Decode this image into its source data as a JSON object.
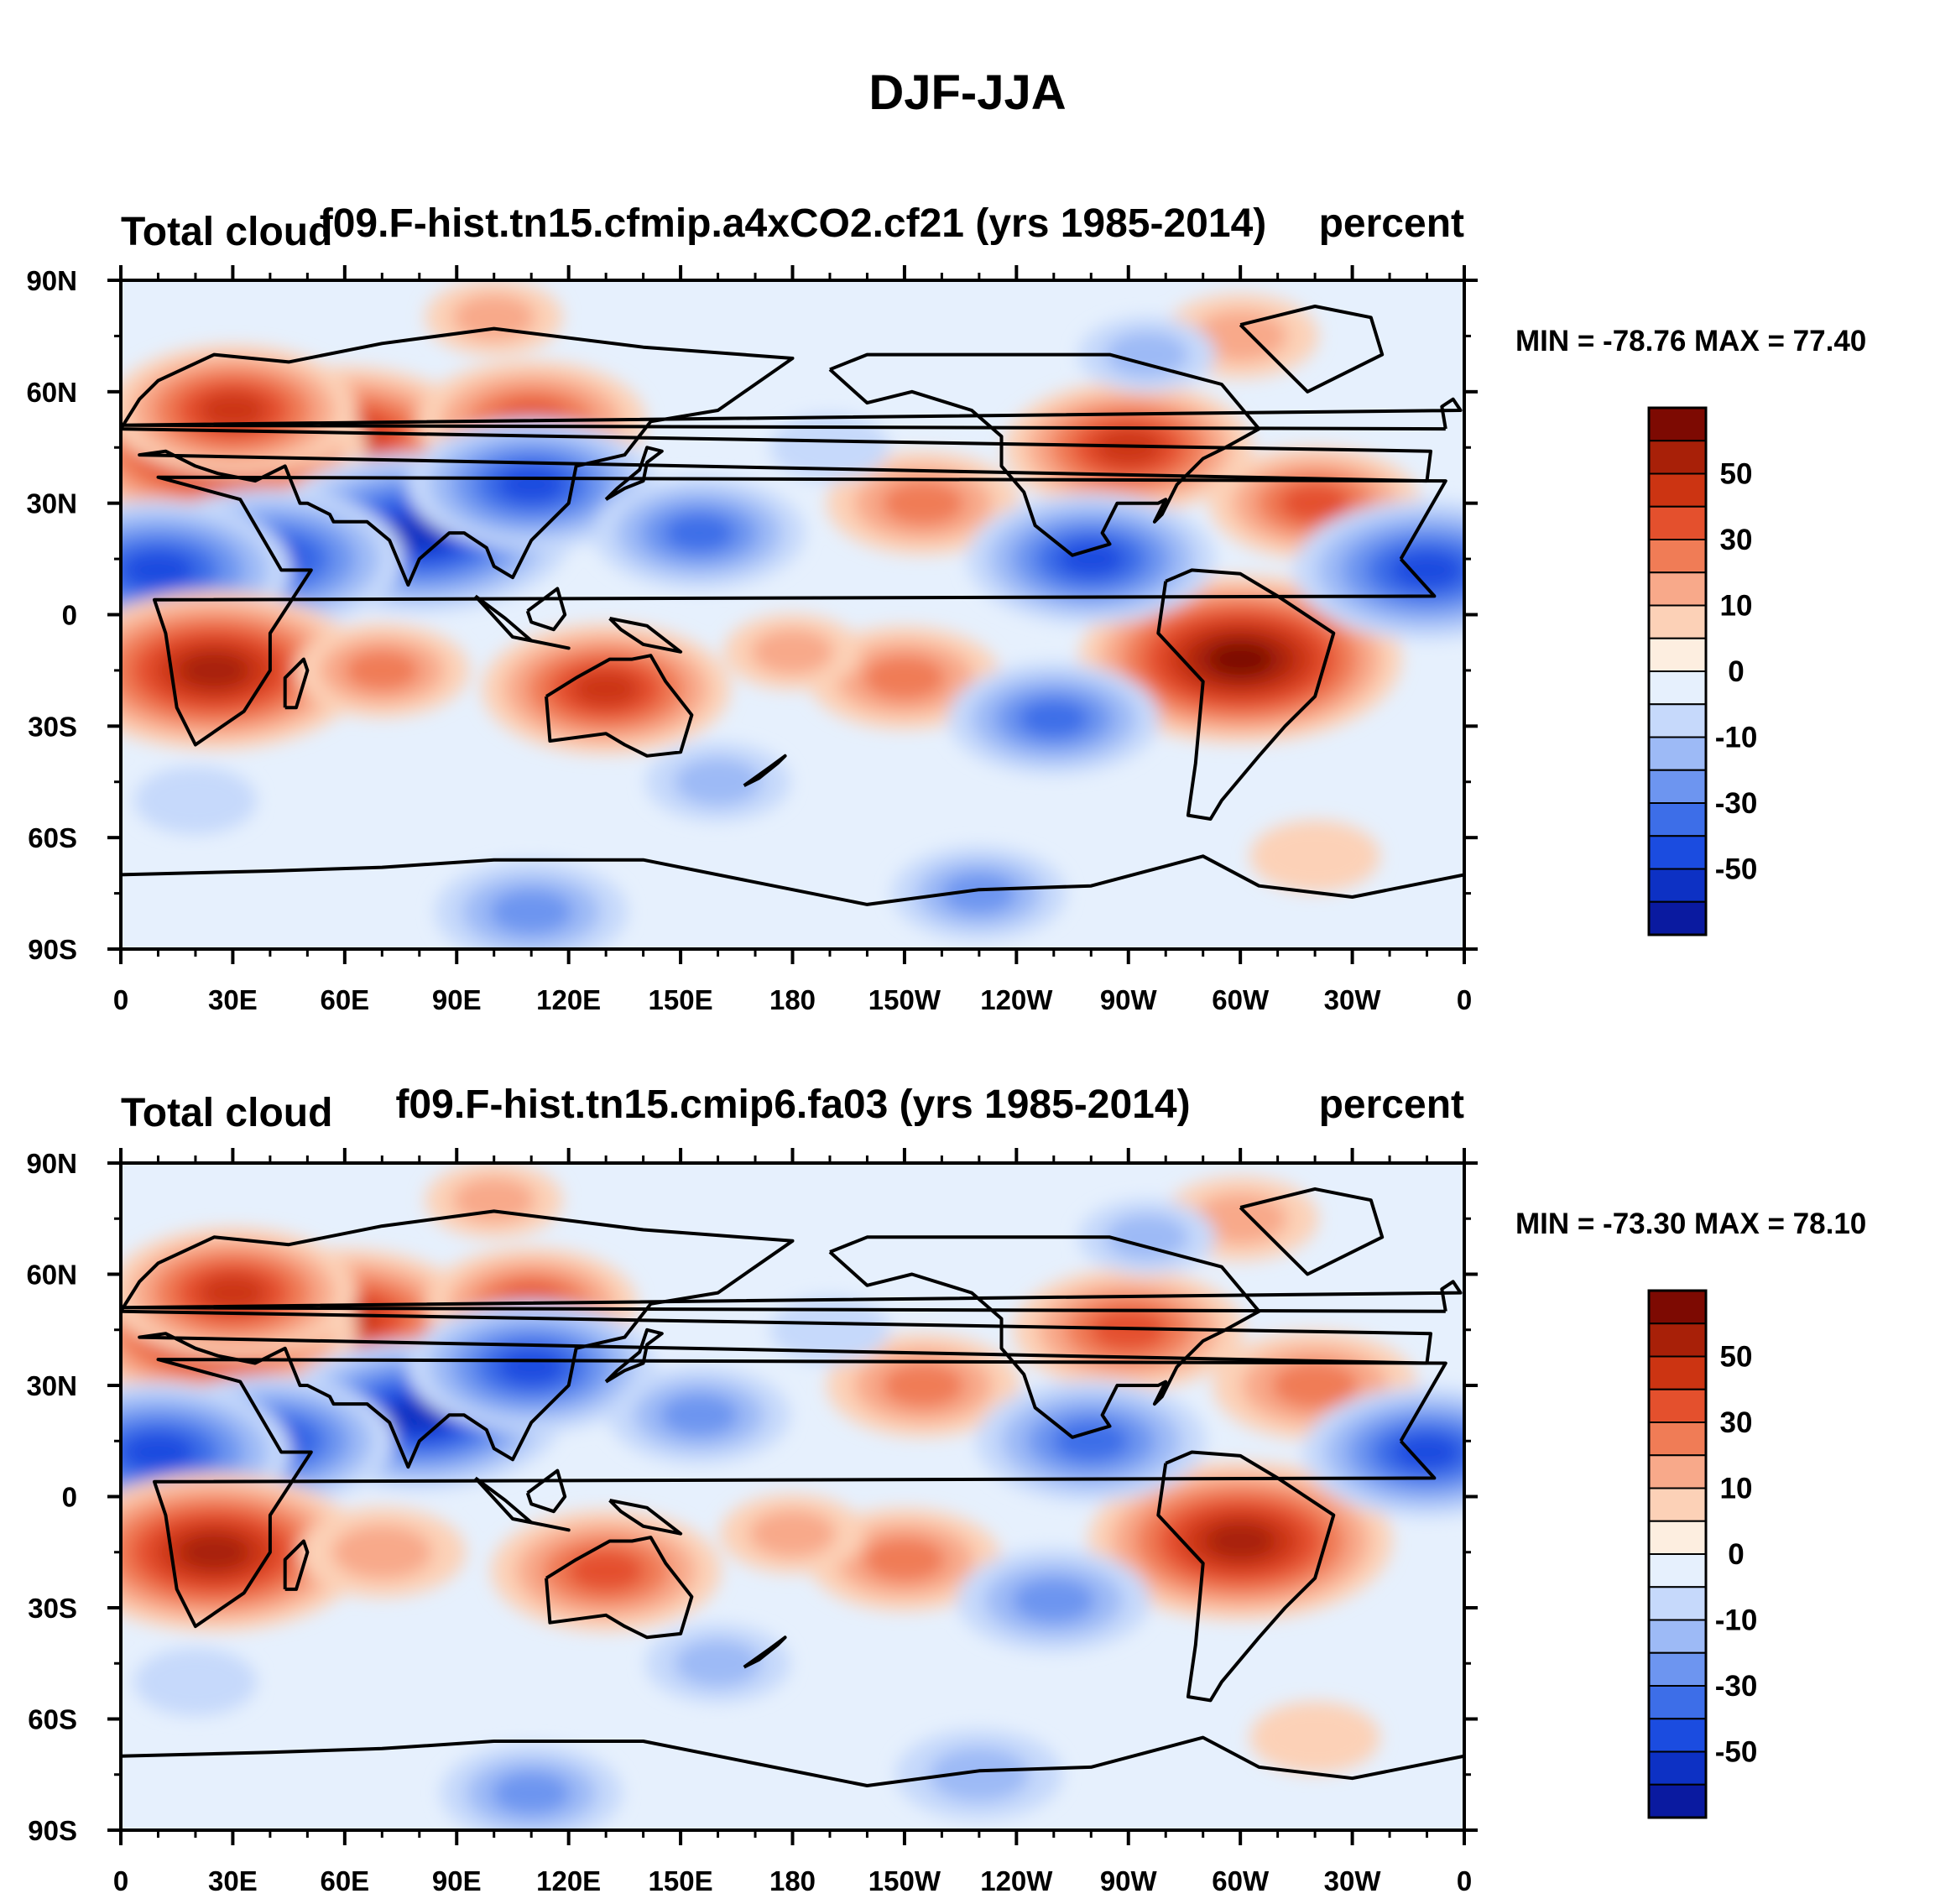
{
  "figure": {
    "title": "DJF-JJA"
  },
  "colorbar": {
    "colors": [
      "#08087f",
      "#0a1aa0",
      "#0d31c4",
      "#1b4ce0",
      "#3d6ee8",
      "#6d95f0",
      "#9dbaf6",
      "#c6d9fb",
      "#e6f0fd",
      "#fdeee0",
      "#fcd1b7",
      "#f8a98a",
      "#f07c56",
      "#e4502d",
      "#cc3412",
      "#a82008",
      "#7d0a02"
    ],
    "levels": [
      -70,
      -60,
      -50,
      -40,
      -30,
      -20,
      -10,
      -5,
      0,
      5,
      10,
      20,
      30,
      40,
      50,
      60,
      70
    ],
    "labels": [
      "50",
      "30",
      "10",
      "0",
      "-10",
      "-30",
      "-50"
    ]
  },
  "axes": {
    "lat_labels": [
      "90N",
      "60N",
      "30N",
      "0",
      "30S",
      "60S",
      "90S"
    ],
    "lon_labels": [
      "0",
      "30E",
      "60E",
      "90E",
      "120E",
      "150E",
      "180",
      "150W",
      "120W",
      "90W",
      "60W",
      "30W",
      "0"
    ]
  },
  "panels": [
    {
      "left_title": "Total cloud",
      "center_title": "f09.F-hist.tn15.cfmip.a4xCO2.cf21 (yrs 1985-2014)",
      "right_title": "percent",
      "minmax": "MIN = -78.76 MAX =  77.40"
    },
    {
      "left_title": "Total cloud",
      "center_title": "f09.F-hist.tn15.cmip6.fa03 (yrs 1985-2014)",
      "right_title": "percent",
      "minmax": "MIN = -73.30 MAX =  78.10"
    }
  ],
  "chart_data": [
    {
      "type": "heatmap",
      "title": "f09.F-hist.tn15.cfmip.a4xCO2.cf21 (yrs 1985-2014)",
      "variable": "Total cloud",
      "units": "percent",
      "season_difference": "DJF-JJA",
      "x_range": [
        0,
        360
      ],
      "y_range": [
        -90,
        90
      ],
      "min": -78.76,
      "max": 77.4,
      "features": [
        {
          "lon": 60,
          "lat": 48,
          "value": 45
        },
        {
          "lon": 25,
          "lat": 45,
          "value": 55
        },
        {
          "lon": 110,
          "lat": 52,
          "value": 35
        },
        {
          "lon": 30,
          "lat": 55,
          "value": 40
        },
        {
          "lon": 80,
          "lat": 22,
          "value": -55
        },
        {
          "lon": 40,
          "lat": 15,
          "value": -45
        },
        {
          "lon": 10,
          "lat": 12,
          "value": -45
        },
        {
          "lon": 110,
          "lat": 35,
          "value": -40
        },
        {
          "lon": 155,
          "lat": 22,
          "value": -30
        },
        {
          "lon": 25,
          "lat": -15,
          "value": 55
        },
        {
          "lon": 130,
          "lat": -20,
          "value": 40
        },
        {
          "lon": 270,
          "lat": 45,
          "value": 40
        },
        {
          "lon": 320,
          "lat": 30,
          "value": 30
        },
        {
          "lon": 215,
          "lat": 30,
          "value": 25
        },
        {
          "lon": 300,
          "lat": -12,
          "value": 60
        },
        {
          "lon": 260,
          "lat": 15,
          "value": -40
        },
        {
          "lon": 350,
          "lat": 12,
          "value": -45
        },
        {
          "lon": 210,
          "lat": -17,
          "value": 25
        },
        {
          "lon": 250,
          "lat": -28,
          "value": -30
        },
        {
          "lon": 70,
          "lat": -15,
          "value": 20
        },
        {
          "lon": 180,
          "lat": -10,
          "value": 10
        },
        {
          "lon": 110,
          "lat": -80,
          "value": -25
        },
        {
          "lon": 230,
          "lat": -75,
          "value": -20
        },
        {
          "lon": 320,
          "lat": -65,
          "value": 8
        },
        {
          "lon": 300,
          "lat": 75,
          "value": 15
        },
        {
          "lon": 275,
          "lat": 70,
          "value": -10
        },
        {
          "lon": 100,
          "lat": 80,
          "value": 10
        },
        {
          "lon": 160,
          "lat": -45,
          "value": -12
        },
        {
          "lon": 20,
          "lat": -50,
          "value": -6
        },
        {
          "lon": 190,
          "lat": 45,
          "value": -5
        }
      ]
    },
    {
      "type": "heatmap",
      "title": "f09.F-hist.tn15.cmip6.fa03 (yrs 1985-2014)",
      "variable": "Total cloud",
      "units": "percent",
      "season_difference": "DJF-JJA",
      "x_range": [
        0,
        360
      ],
      "y_range": [
        -90,
        90
      ],
      "min": -73.3,
      "max": 78.1,
      "features": [
        {
          "lon": 60,
          "lat": 48,
          "value": 45
        },
        {
          "lon": 25,
          "lat": 45,
          "value": 50
        },
        {
          "lon": 110,
          "lat": 52,
          "value": 30
        },
        {
          "lon": 30,
          "lat": 55,
          "value": 40
        },
        {
          "lon": 80,
          "lat": 22,
          "value": -50
        },
        {
          "lon": 40,
          "lat": 15,
          "value": -40
        },
        {
          "lon": 10,
          "lat": 12,
          "value": -45
        },
        {
          "lon": 110,
          "lat": 35,
          "value": -40
        },
        {
          "lon": 155,
          "lat": 22,
          "value": -22
        },
        {
          "lon": 25,
          "lat": -15,
          "value": 55
        },
        {
          "lon": 130,
          "lat": -20,
          "value": 35
        },
        {
          "lon": 270,
          "lat": 45,
          "value": 35
        },
        {
          "lon": 320,
          "lat": 30,
          "value": 28
        },
        {
          "lon": 215,
          "lat": 30,
          "value": 25
        },
        {
          "lon": 300,
          "lat": -12,
          "value": 55
        },
        {
          "lon": 260,
          "lat": 15,
          "value": -35
        },
        {
          "lon": 350,
          "lat": 12,
          "value": -40
        },
        {
          "lon": 210,
          "lat": -17,
          "value": 25
        },
        {
          "lon": 250,
          "lat": -28,
          "value": -25
        },
        {
          "lon": 70,
          "lat": -15,
          "value": 18
        },
        {
          "lon": 180,
          "lat": -10,
          "value": 12
        },
        {
          "lon": 110,
          "lat": -80,
          "value": -22
        },
        {
          "lon": 230,
          "lat": -75,
          "value": -18
        },
        {
          "lon": 320,
          "lat": -65,
          "value": 8
        },
        {
          "lon": 300,
          "lat": 75,
          "value": 15
        },
        {
          "lon": 275,
          "lat": 70,
          "value": -10
        },
        {
          "lon": 100,
          "lat": 80,
          "value": 10
        },
        {
          "lon": 160,
          "lat": -45,
          "value": -12
        },
        {
          "lon": 20,
          "lat": -50,
          "value": -6
        },
        {
          "lon": 190,
          "lat": 45,
          "value": -5
        }
      ]
    }
  ]
}
